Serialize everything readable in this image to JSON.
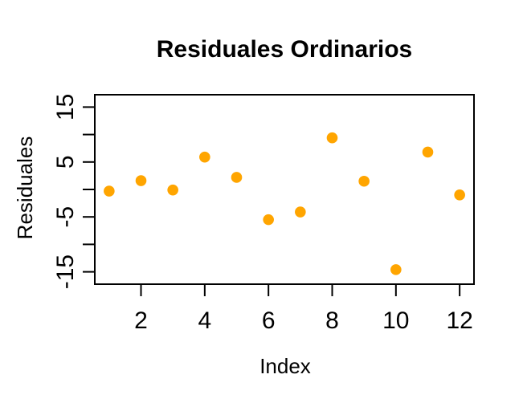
{
  "chart_data": {
    "type": "scatter",
    "title": "Residuales Ordinarios",
    "xlabel": "Index",
    "ylabel": "Residuales",
    "x": [
      1,
      2,
      3,
      4,
      5,
      6,
      7,
      8,
      9,
      10,
      11,
      12
    ],
    "y": [
      -0.3,
      1.6,
      -0.1,
      5.9,
      2.2,
      -5.5,
      -4.1,
      9.4,
      1.5,
      -14.6,
      6.8,
      -1.0
    ],
    "x_ticks": [
      2,
      4,
      6,
      8,
      10,
      12
    ],
    "x_tick_labels": [
      "2",
      "4",
      "6",
      "8",
      "10",
      "12"
    ],
    "y_ticks": [
      -15,
      -10,
      -5,
      0,
      5,
      10,
      15
    ],
    "y_tick_labels": [
      "-15",
      "",
      "-5",
      "",
      "5",
      "",
      "15"
    ],
    "xlim": [
      0.55,
      12.45
    ],
    "ylim": [
      -17.25,
      17.25
    ],
    "grid": false,
    "legend": "none",
    "point_color": "#FFA500",
    "axis_color": "#000000",
    "background_color": "#FFFFFF"
  }
}
